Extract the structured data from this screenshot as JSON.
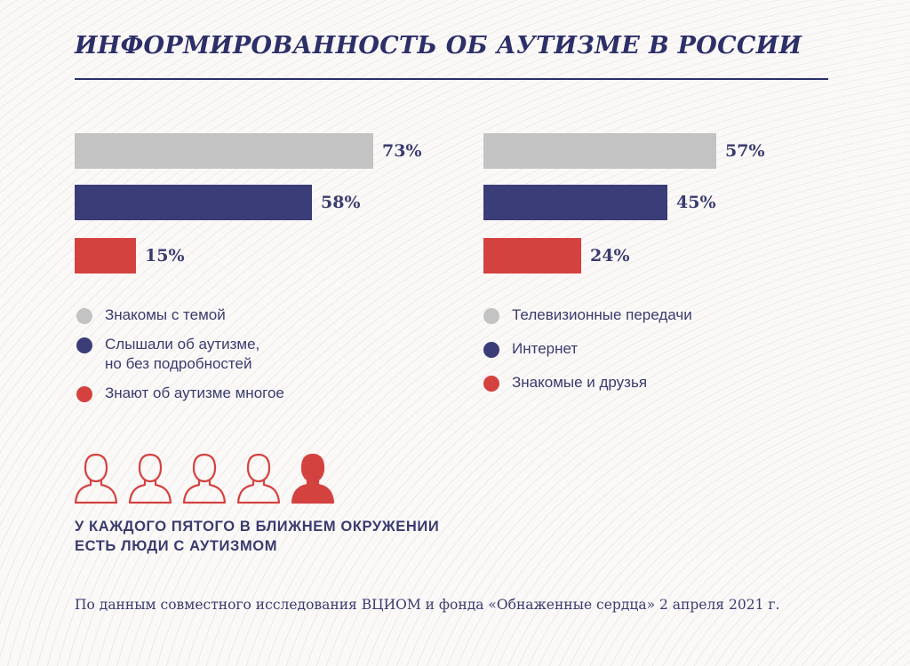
{
  "title": "ИНФОРМИРОВАННОСТЬ ОБ АУТИЗМЕ В РОССИИ",
  "colors": {
    "gray": "#c4c3c3",
    "navy": "#3a3d77",
    "red": "#d44240"
  },
  "chart_data": [
    {
      "type": "bar",
      "orientation": "horizontal",
      "categories": [
        "Знакомы с темой",
        "Слышали об аутизме, но без подробностей",
        "Знают об аутизме многое"
      ],
      "values": [
        73,
        58,
        15
      ],
      "value_labels": [
        "73%",
        "58%",
        "15%"
      ],
      "colors": [
        "#c4c3c3",
        "#3a3d77",
        "#d44240"
      ],
      "xlim": [
        0,
        100
      ],
      "grid": false
    },
    {
      "type": "bar",
      "orientation": "horizontal",
      "categories": [
        "Телевизионные передачи",
        "Интернет",
        "Знакомые и друзья"
      ],
      "values": [
        57,
        45,
        24
      ],
      "value_labels": [
        "57%",
        "45%",
        "24%"
      ],
      "colors": [
        "#c4c3c3",
        "#3a3d77",
        "#d44240"
      ],
      "xlim": [
        0,
        100
      ],
      "grid": false
    }
  ],
  "legend_left": [
    {
      "label_line1": "Знакомы с темой",
      "label_line2": "",
      "color": "#c4c3c3"
    },
    {
      "label_line1": "Слышали об аутизме,",
      "label_line2": "но без подробностей",
      "color": "#3a3d77"
    },
    {
      "label_line1": "Знают об аутизме многое",
      "label_line2": "",
      "color": "#d44240"
    }
  ],
  "legend_right": [
    {
      "label_line1": "Телевизионные передачи",
      "label_line2": "",
      "color": "#c4c3c3"
    },
    {
      "label_line1": "Интернет",
      "label_line2": "",
      "color": "#3a3d77"
    },
    {
      "label_line1": "Знакомые и друзья",
      "label_line2": "",
      "color": "#d44240"
    }
  ],
  "people": {
    "total": 5,
    "highlighted": 1,
    "icon": "person-icon",
    "color": "#d44240"
  },
  "headline_line1": "У КАЖДОГО ПЯТОГО В БЛИЖНЕМ ОКРУЖЕНИИ",
  "headline_line2": "ЕСТЬ ЛЮДИ С АУТИЗМОМ",
  "source": "По данным совместного исследования ВЦИОМ и фонда «Обнаженные сердца» 2 апреля 2021 г."
}
